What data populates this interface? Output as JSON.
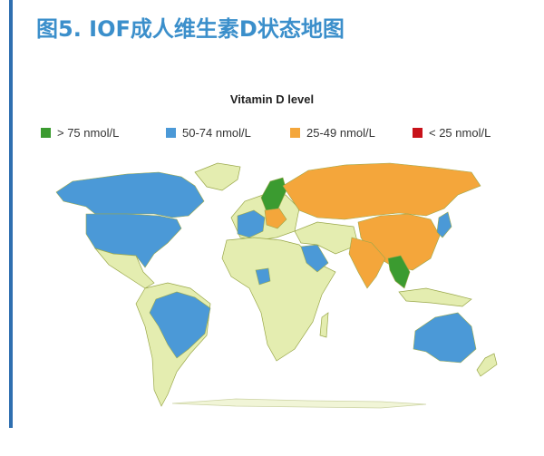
{
  "title": "图5. IOF成人维生素D状态地图",
  "legend": {
    "title": "Vitamin D level",
    "items": [
      {
        "label": "> 75 nmol/L",
        "color": "#3b9b30"
      },
      {
        "label": "50-74 nmol/L",
        "color": "#4b99d7"
      },
      {
        "label": "25-49 nmol/L",
        "color": "#f4a63b"
      },
      {
        "label": "< 25 nmol/L",
        "color": "#c8121a"
      }
    ]
  }
}
